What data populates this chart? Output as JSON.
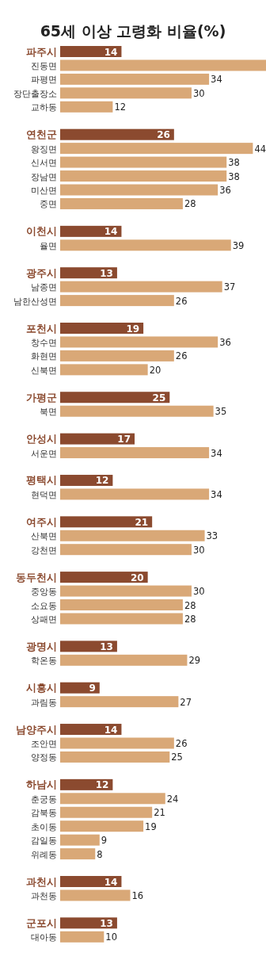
{
  "chart_data": {
    "type": "bar",
    "orientation": "horizontal",
    "title": "65세 이상 고령화 비율(%)",
    "categories": [
      "파주시",
      "진동면",
      "파평면",
      "장단출장소",
      "교하동",
      "연천군",
      "왕징면",
      "신서면",
      "장남면",
      "미산면",
      "중면",
      "이천시",
      "율면",
      "광주시",
      "남종면",
      "남한산성면",
      "포천시",
      "창수면",
      "화현면",
      "신북면",
      "가평군",
      "북면",
      "안성시",
      "서운면",
      "평택시",
      "현덕면",
      "여주시",
      "산북면",
      "강천면",
      "동두천시",
      "중앙동",
      "소요동",
      "상패면",
      "광명시",
      "학온동",
      "시흥시",
      "과림동",
      "남양주시",
      "조안면",
      "양정동",
      "하남시",
      "춘궁동",
      "감북동",
      "초이동",
      "감일동",
      "위례동",
      "과천시",
      "과천동",
      "군포시",
      "대아동"
    ],
    "values": [
      14,
      47,
      34,
      30,
      12,
      26,
      44,
      38,
      38,
      36,
      28,
      14,
      39,
      13,
      37,
      26,
      19,
      36,
      26,
      20,
      25,
      35,
      17,
      34,
      12,
      34,
      21,
      33,
      30,
      20,
      30,
      28,
      28,
      13,
      29,
      9,
      27,
      14,
      26,
      25,
      12,
      24,
      21,
      19,
      9,
      8,
      14,
      16,
      13,
      10
    ],
    "value_labels": [
      "14",
      null,
      "34",
      "30",
      "12",
      "26",
      "44",
      "38",
      "38",
      "36",
      "28",
      "14",
      "39",
      "13",
      "37",
      "26",
      "19",
      "36",
      "26",
      "20",
      "25",
      "35",
      "17",
      "34",
      "12",
      "34",
      "21",
      "33",
      "30",
      "20",
      "30",
      "28",
      "28",
      "13",
      "29",
      "9",
      "27",
      "14",
      "26",
      "25",
      "12",
      "24",
      "21",
      "19",
      "9",
      "8",
      "14",
      "16",
      "13",
      "10"
    ],
    "colors": [
      "#8b4a2f",
      "#d9a877",
      "#d9a877",
      "#d9a877",
      "#d9a877",
      "#8b4a2f",
      "#d9a877",
      "#d9a877",
      "#d9a877",
      "#d9a877",
      "#d9a877",
      "#8b4a2f",
      "#d9a877",
      "#8b4a2f",
      "#d9a877",
      "#d9a877",
      "#8b4a2f",
      "#d9a877",
      "#d9a877",
      "#d9a877",
      "#8b4a2f",
      "#d9a877",
      "#8b4a2f",
      "#d9a877",
      "#8b4a2f",
      "#d9a877",
      "#8b4a2f",
      "#d9a877",
      "#d9a877",
      "#8b4a2f",
      "#d9a877",
      "#d9a877",
      "#d9a877",
      "#8b4a2f",
      "#d9a877",
      "#8b4a2f",
      "#d9a877",
      "#8b4a2f",
      "#d9a877",
      "#d9a877",
      "#8b4a2f",
      "#d9a877",
      "#d9a877",
      "#d9a877",
      "#d9a877",
      "#d9a877",
      "#8b4a2f",
      "#d9a877",
      "#8b4a2f",
      "#d9a877"
    ]
  }
}
